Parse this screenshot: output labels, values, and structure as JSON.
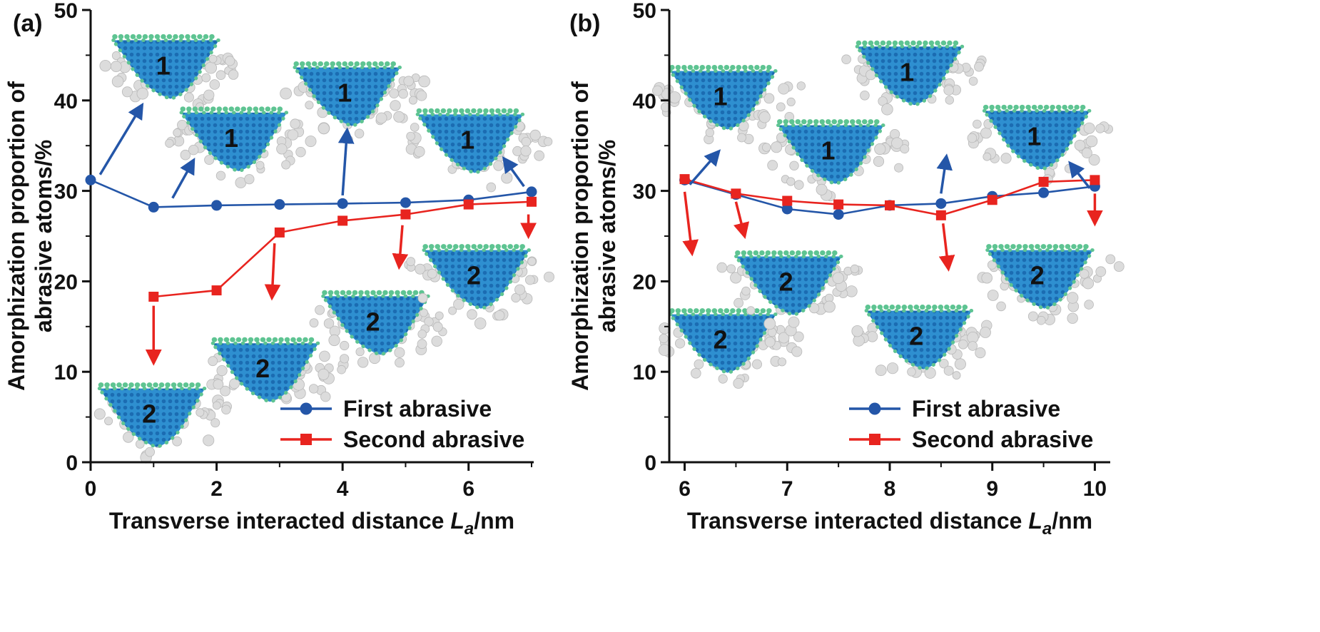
{
  "colors": {
    "first_series": "#2456a8",
    "second_series": "#e8241f",
    "axis": "#111111",
    "particle_blue": "#2e8fd0",
    "particle_blue_dark": "#1b6cb2",
    "particle_green": "#5ec492",
    "particle_gray": "#dcdcdc"
  },
  "chart_data": [
    {
      "type": "line",
      "panel_label": "(a)",
      "ylabel_lines": [
        "Amorphization proportion of",
        "abrasive atoms/%"
      ],
      "xlabel": {
        "prefix": "Transverse interacted distance ",
        "variable": "L",
        "subscript": "a",
        "suffix": "/nm"
      },
      "xlim": [
        0,
        7
      ],
      "ylim": [
        0,
        50
      ],
      "xticks": [
        0,
        2,
        4,
        6
      ],
      "xminorticks": [
        1,
        3,
        5,
        7
      ],
      "yticks": [
        0,
        10,
        20,
        30,
        40,
        50
      ],
      "yminorticks": [
        5,
        15,
        25,
        35,
        45
      ],
      "grid": false,
      "legend_position": "lower right",
      "series": [
        {
          "name": "First abrasive",
          "color": "#2456a8",
          "marker": "circle",
          "x": [
            0,
            1,
            2,
            3,
            4,
            5,
            6,
            7
          ],
          "y": [
            31.2,
            28.2,
            28.4,
            28.5,
            28.6,
            28.7,
            29.0,
            29.9
          ]
        },
        {
          "name": "Second abrasive",
          "color": "#e8241f",
          "marker": "square",
          "x": [
            1,
            2,
            3,
            4,
            5,
            6,
            7
          ],
          "y": [
            18.3,
            19.0,
            25.4,
            26.7,
            27.4,
            28.5,
            28.8
          ]
        }
      ],
      "insets": [
        {
          "label": "1",
          "x": 1.22,
          "y": 43.5
        },
        {
          "label": "1",
          "x": 2.3,
          "y": 35.5
        },
        {
          "label": "1",
          "x": 4.1,
          "y": 40.5
        },
        {
          "label": "1",
          "x": 6.05,
          "y": 35.3
        },
        {
          "label": "2",
          "x": 1.0,
          "y": 5.0
        },
        {
          "label": "2",
          "x": 2.8,
          "y": 10.0
        },
        {
          "label": "2",
          "x": 4.55,
          "y": 15.2
        },
        {
          "label": "2",
          "x": 6.15,
          "y": 20.3
        }
      ],
      "arrows": [
        {
          "series": "First abrasive",
          "color": "#2456a8",
          "from": [
            0.15,
            31.8
          ],
          "to": [
            0.8,
            39.3
          ]
        },
        {
          "series": "First abrasive",
          "color": "#2456a8",
          "from": [
            1.3,
            29.2
          ],
          "to": [
            1.62,
            33.2
          ]
        },
        {
          "series": "First abrasive",
          "color": "#2456a8",
          "from": [
            4.0,
            29.5
          ],
          "to": [
            4.07,
            36.5
          ]
        },
        {
          "series": "First abrasive",
          "color": "#2456a8",
          "from": [
            6.88,
            30.5
          ],
          "to": [
            6.58,
            33.4
          ]
        },
        {
          "series": "Second abrasive",
          "color": "#e8241f",
          "from": [
            1.0,
            17.3
          ],
          "to": [
            1.0,
            11.2
          ]
        },
        {
          "series": "Second abrasive",
          "color": "#e8241f",
          "from": [
            2.92,
            24.2
          ],
          "to": [
            2.88,
            18.4
          ]
        },
        {
          "series": "Second abrasive",
          "color": "#e8241f",
          "from": [
            4.95,
            26.2
          ],
          "to": [
            4.9,
            21.8
          ]
        },
        {
          "series": "Second abrasive",
          "color": "#e8241f",
          "from": [
            6.95,
            27.4
          ],
          "to": [
            6.95,
            25.2
          ]
        }
      ]
    },
    {
      "type": "line",
      "panel_label": "(b)",
      "ylabel_lines": [
        "Amorphization proportion of",
        "abrasive atoms/%"
      ],
      "xlabel": {
        "prefix": "Transverse interacted distance ",
        "variable": "L",
        "subscript": "a",
        "suffix": "/nm"
      },
      "xlim": [
        5.85,
        10.15
      ],
      "ylim": [
        0,
        50
      ],
      "xticks": [
        6,
        7,
        8,
        9,
        10
      ],
      "xminorticks": [
        6.5,
        7.5,
        8.5,
        9.5
      ],
      "yticks": [
        0,
        10,
        20,
        30,
        40,
        50
      ],
      "yminorticks": [
        5,
        15,
        25,
        35,
        45
      ],
      "grid": false,
      "legend_position": "lower right",
      "series": [
        {
          "name": "First abrasive",
          "color": "#2456a8",
          "marker": "circle",
          "x": [
            6,
            6.5,
            7,
            7.5,
            8,
            8.5,
            9,
            9.5,
            10
          ],
          "y": [
            31.2,
            29.6,
            28.0,
            27.4,
            28.4,
            28.6,
            29.4,
            29.8,
            30.5
          ]
        },
        {
          "name": "Second abrasive",
          "color": "#e8241f",
          "marker": "square",
          "x": [
            6,
            6.5,
            7,
            7.5,
            8,
            8.5,
            9,
            9.5,
            10
          ],
          "y": [
            31.3,
            29.7,
            28.9,
            28.5,
            28.4,
            27.3,
            29.0,
            31.0,
            31.2
          ]
        }
      ],
      "insets": [
        {
          "label": "1",
          "x": 6.39,
          "y": 40.1
        },
        {
          "label": "1",
          "x": 7.44,
          "y": 34.1
        },
        {
          "label": "1",
          "x": 8.21,
          "y": 42.8
        },
        {
          "label": "1",
          "x": 9.45,
          "y": 35.7
        },
        {
          "label": "2",
          "x": 6.39,
          "y": 13.2
        },
        {
          "label": "2",
          "x": 7.03,
          "y": 19.6
        },
        {
          "label": "2",
          "x": 8.3,
          "y": 13.6
        },
        {
          "label": "2",
          "x": 9.48,
          "y": 20.3
        }
      ],
      "arrows": [
        {
          "series": "First abrasive",
          "color": "#2456a8",
          "from": [
            6.05,
            30.7
          ],
          "to": [
            6.32,
            34.2
          ]
        },
        {
          "series": "First abrasive",
          "color": "#2456a8",
          "from": [
            8.5,
            29.7
          ],
          "to": [
            8.55,
            33.6
          ]
        },
        {
          "series": "First abrasive",
          "color": "#2456a8",
          "from": [
            9.95,
            30.3
          ],
          "to": [
            9.77,
            32.9
          ]
        },
        {
          "series": "Second abrasive",
          "color": "#e8241f",
          "from": [
            6.0,
            29.9
          ],
          "to": [
            6.07,
            23.3
          ]
        },
        {
          "series": "Second abrasive",
          "color": "#e8241f",
          "from": [
            6.5,
            28.8
          ],
          "to": [
            6.58,
            25.2
          ]
        },
        {
          "series": "Second abrasive",
          "color": "#e8241f",
          "from": [
            8.52,
            26.4
          ],
          "to": [
            8.57,
            21.6
          ]
        },
        {
          "series": "Second abrasive",
          "color": "#e8241f",
          "from": [
            10.0,
            29.7
          ],
          "to": [
            10.0,
            26.6
          ]
        }
      ]
    }
  ]
}
